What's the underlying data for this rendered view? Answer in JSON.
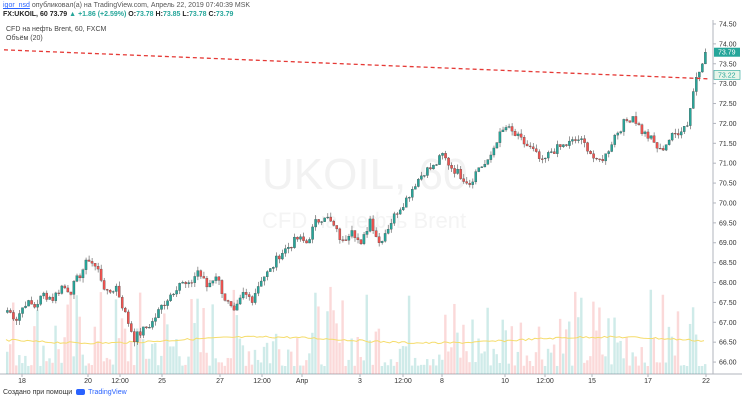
{
  "header": {
    "user": "igor_nsd",
    "published": "опубликовал(а) на TradingView.com, Апрель 22, 2019 07:40:39 MSK"
  },
  "quote": {
    "symbol": "FX:UKOIL, 60",
    "last": "73.79",
    "change": "+1.86 (+2.59%)",
    "o_label": "O:",
    "o": "73.78",
    "h_label": "H:",
    "h": "73.85",
    "l_label": "L:",
    "l": "73.78",
    "c_label": "C:",
    "c": "73.79"
  },
  "legend": {
    "line1": "CFD на нефть Brent, 60, FXCM",
    "line2": "Объём (20)"
  },
  "watermark": {
    "symbol": "UKOIL, 60",
    "description": "CFD на нефть Brent"
  },
  "footer": {
    "created": "Создано при помощи",
    "brand": "TradingView"
  },
  "colors": {
    "up": "#26a69a",
    "down": "#ef5350",
    "trendline": "#e53935",
    "ma": "#f5dc6b",
    "last_price_bg": "#26a69a"
  },
  "chart_data": {
    "type": "candlestick",
    "symbol": "FX:UKOIL",
    "interval": "60",
    "ylim": [
      65.7,
      74.6
    ],
    "y_ticks": [
      "74.50",
      "74.00",
      "73.50",
      "73.00",
      "72.50",
      "72.00",
      "71.50",
      "71.00",
      "70.50",
      "70.00",
      "69.50",
      "69.00",
      "68.50",
      "68.00",
      "67.50",
      "67.00",
      "66.50",
      "66.00"
    ],
    "x_ticks": [
      "18",
      "20",
      "12:00",
      "25",
      "27",
      "12:00",
      "Апр",
      "3",
      "12:00",
      "8",
      "10",
      "12:00",
      "15",
      "17",
      "22"
    ],
    "price_labels": [
      "73.79",
      "73.22"
    ],
    "trendline": {
      "start": 73.85,
      "end": 73.12,
      "style": "dashed"
    },
    "volume_ma_period": 20,
    "close_path": [
      67.3,
      67.1,
      67.5,
      67.4,
      67.7,
      67.6,
      67.9,
      67.8,
      68.2,
      68.6,
      68.3,
      67.7,
      67.9,
      67.2,
      66.6,
      66.8,
      67.0,
      67.4,
      67.7,
      68.0,
      67.9,
      68.3,
      67.9,
      68.2,
      67.6,
      67.2,
      67.7,
      67.6,
      68.1,
      68.3,
      68.7,
      68.9,
      69.1,
      69.0,
      69.5,
      69.7,
      69.4,
      69.0,
      69.4,
      68.9,
      69.6,
      69.0,
      69.4,
      69.8,
      70.1,
      70.5,
      70.8,
      70.9,
      71.2,
      70.9,
      70.7,
      70.5,
      70.9,
      71.0,
      71.6,
      71.9,
      71.7,
      71.5,
      71.3,
      71.0,
      71.3,
      71.4,
      71.5,
      71.6,
      71.4,
      71.0,
      71.2,
      71.7,
      72.0,
      72.2,
      71.8,
      71.6,
      71.3,
      71.6,
      71.8,
      72.0,
      73.2,
      73.79
    ]
  }
}
